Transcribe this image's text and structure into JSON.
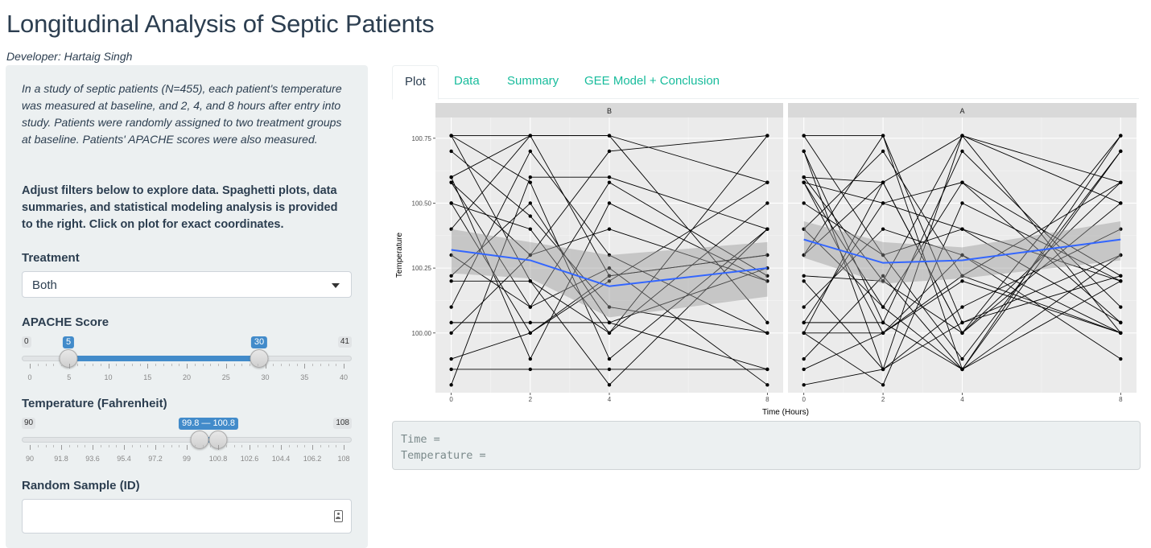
{
  "app": {
    "title": "Longitudinal Analysis of Septic Patients",
    "developer": "Developer: Hartaig Singh"
  },
  "sidebar": {
    "description": "In a study of septic patients (N=455), each patient's temperature was measured at baseline, and 2, 4, and 8 hours after entry into study. Patients were randomly assigned to two treatment groups at baseline. Patients' APACHE scores were also measured.",
    "instructions": "Adjust filters below to explore data. Spaghetti plots, data summaries, and statistical modeling analysis is provided to the right. Click on plot for exact coordinates.",
    "treatment": {
      "label": "Treatment",
      "selected": "Both"
    },
    "apache": {
      "label": "APACHE Score",
      "min": "0",
      "max": "41",
      "from": "5",
      "to": "30",
      "grid": [
        "0",
        "5",
        "10",
        "15",
        "20",
        "25",
        "30",
        "35",
        "40"
      ]
    },
    "temperature": {
      "label": "Temperature (Fahrenheit)",
      "min": "90",
      "max": "108",
      "range": "99.8 — 100.8",
      "grid": [
        "90",
        "91.8",
        "93.6",
        "95.4",
        "97.2",
        "99",
        "100.8",
        "102.6",
        "104.4",
        "106.2",
        "108"
      ]
    },
    "random_sample": {
      "label": "Random Sample (ID)",
      "value": ""
    }
  },
  "tabs": [
    {
      "label": "Plot",
      "active": true
    },
    {
      "label": "Data",
      "active": false
    },
    {
      "label": "Summary",
      "active": false
    },
    {
      "label": "GEE Model + Conclusion",
      "active": false
    }
  ],
  "click_info": {
    "time_line": "Time =",
    "temp_line": "Temperature ="
  },
  "colors": {
    "accent": "#18bc9c",
    "slider": "#428bca",
    "smooth_line": "#3366ff",
    "panel_bg": "#ebebeb"
  },
  "chart_data": {
    "type": "line",
    "xlabel": "Time (Hours)",
    "ylabel": "Temperature",
    "x_ticks": [
      0,
      2,
      4,
      8
    ],
    "y_ticks": [
      100.0,
      100.25,
      100.5,
      100.75
    ],
    "ylim": [
      99.77,
      100.83
    ],
    "xlim": [
      -0.4,
      8.4
    ],
    "facets": [
      {
        "name": "B",
        "smooth": [
          [
            0,
            100.32
          ],
          [
            2,
            100.28
          ],
          [
            4,
            100.18
          ],
          [
            8,
            100.25
          ]
        ],
        "band_upper": [
          [
            0,
            100.4
          ],
          [
            2,
            100.35
          ],
          [
            4,
            100.3
          ],
          [
            8,
            100.35
          ]
        ],
        "band_lower": [
          [
            0,
            100.23
          ],
          [
            2,
            100.21
          ],
          [
            4,
            100.06
          ],
          [
            8,
            100.14
          ]
        ],
        "patients": [
          [
            100.76,
            100.2,
            100.0,
            100.76
          ],
          [
            100.76,
            100.58,
            99.9,
            100.4
          ],
          [
            100.7,
            100.45,
            100.1,
            100.0
          ],
          [
            100.6,
            100.76,
            100.76,
            100.58
          ],
          [
            100.58,
            100.3,
            100.4,
            100.2
          ],
          [
            100.58,
            100.1,
            100.25,
            99.8
          ],
          [
            100.5,
            100.4,
            100.0,
            100.5
          ],
          [
            100.4,
            100.76,
            100.22,
            100.3
          ],
          [
            100.3,
            100.1,
            100.58,
            100.22
          ],
          [
            100.22,
            100.5,
            100.04,
            99.86
          ],
          [
            100.2,
            100.2,
            99.8,
            100.4
          ],
          [
            100.1,
            100.7,
            100.3,
            100.0
          ],
          [
            100.04,
            100.04,
            100.04,
            100.25
          ],
          [
            100.0,
            100.3,
            100.7,
            100.76
          ],
          [
            99.9,
            100.0,
            100.2,
            100.58
          ],
          [
            99.86,
            99.86,
            99.86,
            99.86
          ],
          [
            99.8,
            100.6,
            100.6,
            100.4
          ],
          [
            100.6,
            99.9,
            100.5,
            100.2
          ],
          [
            100.76,
            100.76,
            100.76,
            100.04
          ],
          [
            100.5,
            100.0,
            100.22,
            100.3
          ]
        ]
      },
      {
        "name": "A",
        "smooth": [
          [
            0,
            100.36
          ],
          [
            2,
            100.27
          ],
          [
            4,
            100.28
          ],
          [
            8,
            100.36
          ]
        ],
        "band_upper": [
          [
            0,
            100.43
          ],
          [
            2,
            100.35
          ],
          [
            4,
            100.33
          ],
          [
            8,
            100.43
          ]
        ],
        "band_lower": [
          [
            0,
            100.29
          ],
          [
            2,
            100.19
          ],
          [
            4,
            100.21
          ],
          [
            8,
            100.28
          ]
        ],
        "patients": [
          [
            100.76,
            100.76,
            99.86,
            100.3
          ],
          [
            100.7,
            99.86,
            100.76,
            100.0
          ],
          [
            100.6,
            100.58,
            100.0,
            100.76
          ],
          [
            100.58,
            100.5,
            100.4,
            100.2
          ],
          [
            100.58,
            100.0,
            100.22,
            100.58
          ],
          [
            100.5,
            100.3,
            99.9,
            100.7
          ],
          [
            100.4,
            100.1,
            100.58,
            100.04
          ],
          [
            100.3,
            100.76,
            100.04,
            100.22
          ],
          [
            100.22,
            100.2,
            100.76,
            100.5
          ],
          [
            100.2,
            99.86,
            100.1,
            100.4
          ],
          [
            100.1,
            100.4,
            100.3,
            99.9
          ],
          [
            100.04,
            100.04,
            100.7,
            100.1
          ],
          [
            100.0,
            100.58,
            100.0,
            100.58
          ],
          [
            100.0,
            99.8,
            100.5,
            100.2
          ],
          [
            99.9,
            100.22,
            99.86,
            100.76
          ],
          [
            99.86,
            100.0,
            100.2,
            100.0
          ],
          [
            99.8,
            99.86,
            100.04,
            100.3
          ],
          [
            100.76,
            100.3,
            100.4,
            100.04
          ],
          [
            100.58,
            100.1,
            99.86,
            100.7
          ],
          [
            100.4,
            100.7,
            100.22,
            100.0
          ],
          [
            100.04,
            100.5,
            100.58,
            100.22
          ],
          [
            100.6,
            100.2,
            100.0,
            100.5
          ],
          [
            100.3,
            100.58,
            100.76,
            100.58
          ],
          [
            100.0,
            100.0,
            100.3,
            100.0
          ],
          [
            100.7,
            100.04,
            99.86,
            100.2
          ]
        ]
      }
    ]
  }
}
